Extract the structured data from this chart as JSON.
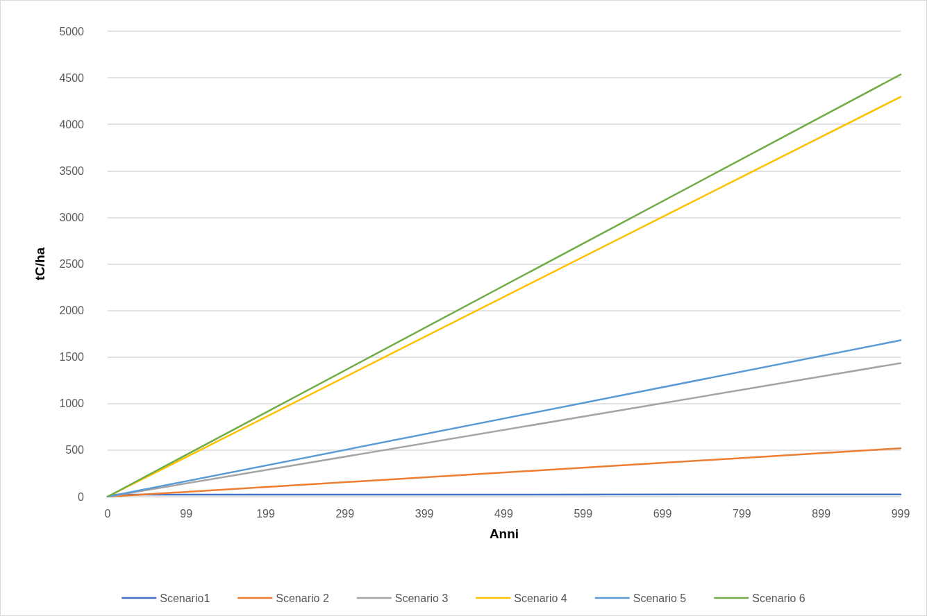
{
  "chart_data": {
    "type": "line",
    "xlabel": "Anni",
    "ylabel": "tC/ha",
    "xlim": [
      0,
      999
    ],
    "xticks": [
      0,
      99,
      199,
      299,
      399,
      499,
      599,
      699,
      799,
      899,
      999
    ],
    "ylim": [
      0,
      5000
    ],
    "yticks": [
      0,
      500,
      1000,
      1500,
      2000,
      2500,
      3000,
      3500,
      4000,
      4500,
      5000
    ],
    "grid": "y",
    "legend": "bottom",
    "marker": "none",
    "line_style": "solid",
    "series": [
      {
        "name": "Scenario1",
        "color": "#4472c4",
        "x": [
          0,
          10,
          999
        ],
        "values": [
          0,
          22,
          24
        ]
      },
      {
        "name": "Scenario 2",
        "color": "#ed7d31",
        "x": [
          0,
          999
        ],
        "values": [
          0,
          520
        ]
      },
      {
        "name": "Scenario 3",
        "color": "#a5a5a5",
        "x": [
          0,
          999
        ],
        "values": [
          0,
          1435
        ]
      },
      {
        "name": "Scenario 4",
        "color": "#ffc000",
        "x": [
          0,
          999
        ],
        "values": [
          0,
          4295
        ]
      },
      {
        "name": "Scenario 5",
        "color": "#5b9bd5",
        "x": [
          0,
          999
        ],
        "values": [
          0,
          1680
        ]
      },
      {
        "name": "Scenario 6",
        "color": "#70ad47",
        "x": [
          0,
          999
        ],
        "values": [
          0,
          4535
        ]
      }
    ]
  }
}
